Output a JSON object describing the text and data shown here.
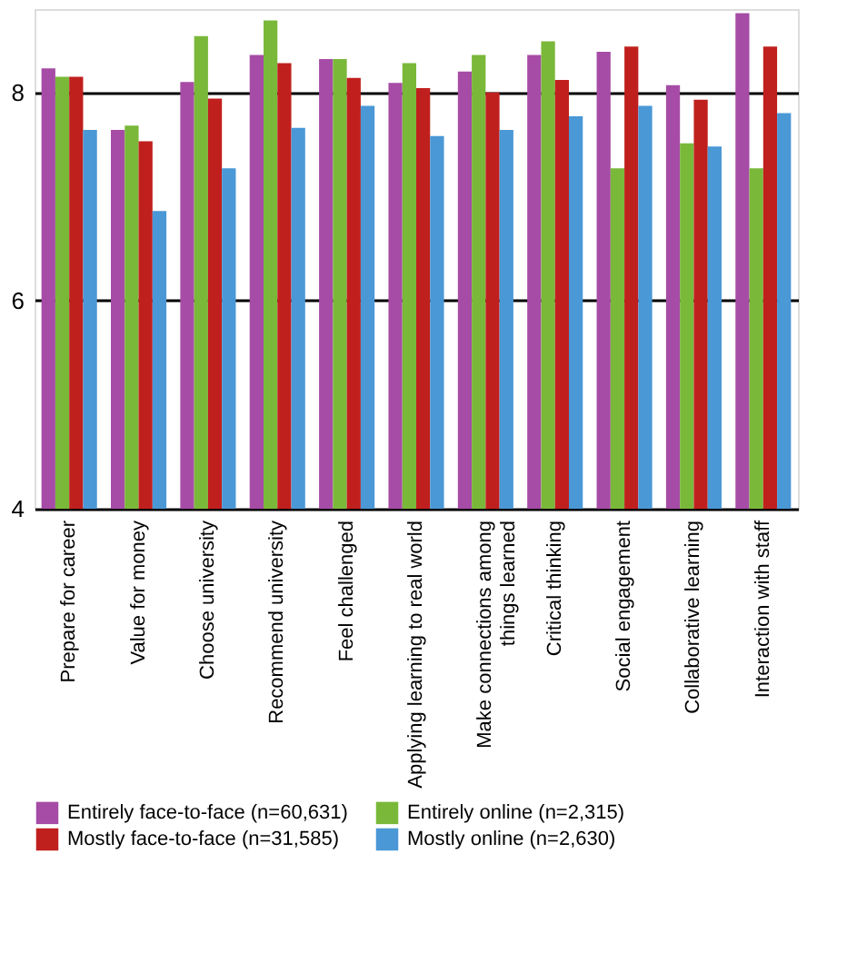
{
  "chart_data": {
    "type": "bar",
    "categories": [
      "Prepare for career",
      "Value for money",
      "Choose university",
      "Recommend university",
      "Feel challenged",
      "Applying learning to real world",
      "Make connections among things learned",
      "Critical thinking",
      "Social engagement",
      "Collaborative learning",
      "Interaction with staff"
    ],
    "series": [
      {
        "name": "Entirely face-to-face (n=60,631)",
        "color": "#a64ca6",
        "values": [
          8.23,
          7.64,
          8.1,
          8.36,
          8.32,
          8.09,
          8.2,
          8.36,
          8.39,
          8.07,
          8.76
        ]
      },
      {
        "name": "Entirely online (n=2,315)",
        "color": "#7ab83a",
        "values": [
          8.15,
          7.68,
          8.54,
          8.69,
          8.32,
          8.28,
          8.36,
          8.49,
          7.27,
          7.51,
          7.27
        ]
      },
      {
        "name": "Mostly face-to-face (n=31,585)",
        "color": "#c0201d",
        "values": [
          8.15,
          7.53,
          7.94,
          8.28,
          8.14,
          8.04,
          8.0,
          8.12,
          8.44,
          7.93,
          8.44
        ]
      },
      {
        "name": "Mostly online (n=2,630)",
        "color": "#4a98d6",
        "values": [
          7.64,
          6.86,
          7.27,
          7.66,
          7.87,
          7.58,
          7.64,
          7.77,
          7.87,
          7.48,
          7.8
        ]
      }
    ],
    "ylim": [
      4,
      8.8
    ],
    "yticks": [
      4,
      6,
      8
    ],
    "grid": "y",
    "legend": "bottom"
  }
}
